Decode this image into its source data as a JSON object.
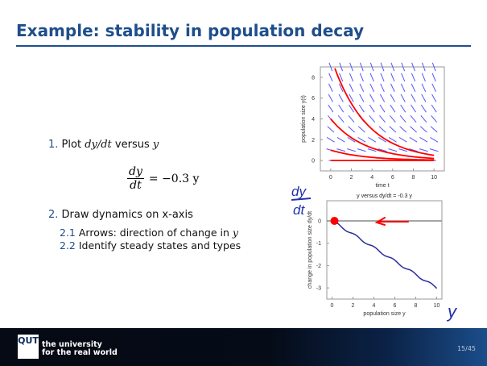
{
  "title": "Example: stability in population decay",
  "list": {
    "item1_num": "1.",
    "item1_pre": "Plot ",
    "item1_math1": "dy/dt",
    "item1_mid": " versus ",
    "item1_math2": "y",
    "eq_num": "dy",
    "eq_den": "dt",
    "eq_rhs": "= −0.3 y",
    "item2_num": "2.",
    "item2": "Draw dynamics on x-axis",
    "sub1_num": "2.1",
    "sub1": "Arrows: direction of change in ",
    "sub1_math": "y",
    "sub2_num": "2.2",
    "sub2": "Identify steady states and types"
  },
  "footer": {
    "logo": "QUT",
    "tagline1": "the university",
    "tagline2": "for the real world",
    "page": "15/45"
  },
  "annotations": {
    "dy": "dy",
    "dt": "dt",
    "y": "y"
  },
  "colors": {
    "accent": "#1f4e8c",
    "curve": "#ff0000",
    "field": "#5555ff",
    "line": "#2b2f9a"
  },
  "chart_data": [
    {
      "type": "line",
      "title": "",
      "xlabel": "time t",
      "ylabel": "population size y(t)",
      "xlim": [
        -1,
        11
      ],
      "ylim": [
        -1,
        9
      ],
      "xticks": [
        0,
        2,
        4,
        6,
        8,
        10
      ],
      "yticks": [
        0,
        2,
        4,
        6,
        8
      ],
      "rate": -0.3,
      "initial_values": [
        0,
        1,
        4,
        10
      ],
      "field": "direction field dy/dt = -0.3 y"
    },
    {
      "type": "line",
      "title": "y versus dy/dt = -0.3 y",
      "xlabel": "population size y",
      "ylabel": "change in population size dy/dt",
      "xlim": [
        -0.5,
        10.5
      ],
      "ylim": [
        -3.5,
        0.9
      ],
      "xticks": [
        0,
        2,
        4,
        6,
        8,
        10
      ],
      "yticks": [
        0,
        -1,
        -2,
        -3
      ],
      "x": [
        0,
        10
      ],
      "y": [
        0,
        -3
      ],
      "steady_state": 0
    }
  ]
}
